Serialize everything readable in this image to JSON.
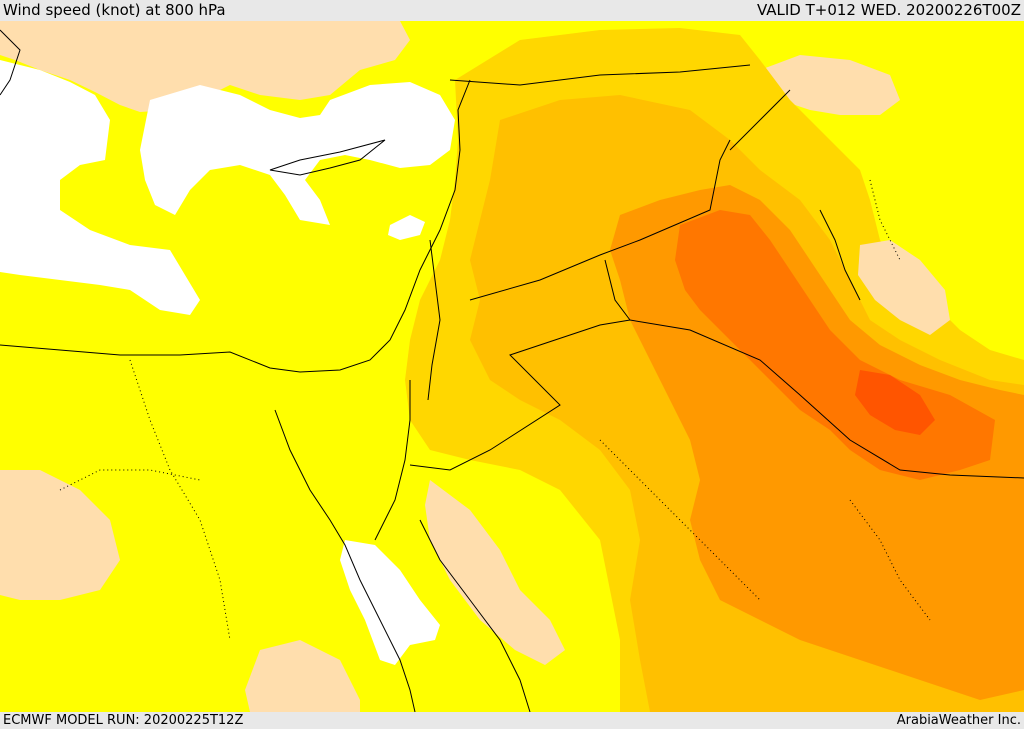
{
  "header": {
    "title": "Wind speed (knot) at 800 hPa",
    "valid_time": "VALID T+012 WED. 20200226T00Z"
  },
  "footer": {
    "model_run": "ECMWF MODEL RUN: 20200225T12Z",
    "credit": "ArabiaWeather Inc."
  },
  "map": {
    "colors": {
      "white_band": "#ffffff",
      "yellow_band": "#ffff00",
      "light_gold_band": "#ffd700",
      "gold_band": "#ffc000",
      "orange_band": "#ff9900",
      "dark_orange_band": "#ff7700",
      "red_orange_band": "#ff5500",
      "tan_band": "#ffdead",
      "coast_line": "#000000"
    }
  }
}
